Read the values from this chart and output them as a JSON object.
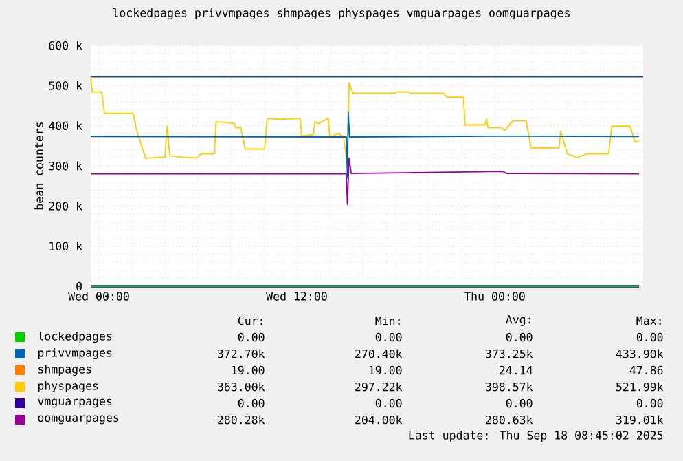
{
  "chart_data": {
    "type": "line",
    "title": "lockedpages privvmpages shmpages physpages vmguarpages oomguarpages",
    "ylabel": "bean counters",
    "xlim": [
      "2025-09-16T23:30",
      "2025-09-18T09:00"
    ],
    "ylim": [
      0,
      600000
    ],
    "xticks": [
      {
        "value": "2025-09-17T00:00",
        "label": "Wed 00:00"
      },
      {
        "value": "2025-09-17T12:00",
        "label": "Wed 12:00"
      },
      {
        "value": "2025-09-18T00:00",
        "label": "Thu 00:00"
      }
    ],
    "yticks": [
      0,
      {
        "value": 100000,
        "label": "100 k"
      },
      {
        "value": 200000,
        "label": "200 k"
      },
      {
        "value": 300000,
        "label": "300 k"
      },
      {
        "value": 400000,
        "label": "400 k"
      },
      {
        "value": 500000,
        "label": "500 k"
      },
      {
        "value": 600000,
        "label": "600 k"
      }
    ],
    "grid": true,
    "legend": "bottom",
    "marker": "none",
    "line_style": "solid",
    "ref_lines": [
      {
        "axis": "y",
        "value": 522000,
        "color": "#1f4f8a"
      }
    ],
    "series": [
      {
        "name": "lockedpages",
        "color": "#00cc00",
        "x": [
          "2025-09-16T23:30",
          "2025-09-18T08:45"
        ],
        "values": [
          0,
          0
        ]
      },
      {
        "name": "privvmpages",
        "color": "#0066b3",
        "x": [
          "2025-09-16T23:30",
          "2025-09-17T15:00",
          "2025-09-17T15:04",
          "2025-09-17T15:07",
          "2025-09-17T15:12",
          "2025-09-18T00:00",
          "2025-09-18T08:45"
        ],
        "values": [
          373000,
          372000,
          270000,
          433000,
          372000,
          374000,
          373000
        ]
      },
      {
        "name": "shmpages",
        "color": "#ff8000",
        "values": [
          null
        ]
      },
      {
        "name": "physpages",
        "color": "#ffcc00",
        "x": [
          "2025-09-16T23:30",
          "2025-09-16T23:36",
          "2025-09-17T00:10",
          "2025-09-17T00:20",
          "2025-09-17T02:04",
          "2025-09-17T02:20",
          "2025-09-17T02:50",
          "2025-09-17T04:00",
          "2025-09-17T04:08",
          "2025-09-17T04:18",
          "2025-09-17T05:00",
          "2025-09-17T05:56",
          "2025-09-17T06:12",
          "2025-09-17T07:00",
          "2025-09-17T07:06",
          "2025-09-17T08:12",
          "2025-09-17T08:18",
          "2025-09-17T08:36",
          "2025-09-17T08:52",
          "2025-09-17T10:03",
          "2025-09-17T10:12",
          "2025-09-17T11:00",
          "2025-09-17T12:12",
          "2025-09-17T12:18",
          "2025-09-17T13:00",
          "2025-09-17T13:06",
          "2025-09-17T13:18",
          "2025-09-17T13:54",
          "2025-09-17T14:00",
          "2025-09-17T14:30",
          "2025-09-17T14:50",
          "2025-09-17T15:04",
          "2025-09-17T15:10",
          "2025-09-17T15:24",
          "2025-09-17T17:54",
          "2025-09-17T18:00",
          "2025-09-17T18:48",
          "2025-09-17T18:54",
          "2025-09-17T20:54",
          "2025-09-17T21:06",
          "2025-09-17T22:06",
          "2025-09-17T22:12",
          "2025-09-17T23:24",
          "2025-09-17T23:30",
          "2025-09-17T23:36",
          "2025-09-18T00:24",
          "2025-09-18T00:36",
          "2025-09-18T01:06",
          "2025-09-18T01:54",
          "2025-09-18T02:12",
          "2025-09-18T03:54",
          "2025-09-18T04:00",
          "2025-09-18T04:24",
          "2025-09-18T05:00",
          "2025-09-18T05:36",
          "2025-09-18T06:54",
          "2025-09-18T07:06",
          "2025-09-18T08:12",
          "2025-09-18T08:30",
          "2025-09-18T08:45"
        ],
        "values": [
          522000,
          484000,
          484000,
          431000,
          431000,
          382000,
          319000,
          322000,
          399000,
          325000,
          322000,
          320000,
          330000,
          330000,
          410000,
          406000,
          395000,
          395000,
          342000,
          342000,
          418000,
          416000,
          418000,
          374000,
          378000,
          410000,
          405000,
          418000,
          370000,
          381000,
          372000,
          302000,
          507000,
          481000,
          481000,
          484000,
          484000,
          481000,
          481000,
          471000,
          471000,
          402000,
          402000,
          416000,
          395000,
          395000,
          388000,
          412000,
          412000,
          345000,
          345000,
          386000,
          330000,
          321000,
          330000,
          330000,
          399000,
          399000,
          359000,
          363000
        ]
      },
      {
        "name": "vmguarpages",
        "color": "#330099",
        "x": [
          "2025-09-16T23:30",
          "2025-09-18T08:45"
        ],
        "values": [
          0,
          0
        ]
      },
      {
        "name": "oomguarpages",
        "color": "#990099",
        "x": [
          "2025-09-16T23:30",
          "2025-09-17T15:00",
          "2025-09-17T15:04",
          "2025-09-17T15:10",
          "2025-09-17T15:18",
          "2025-09-18T00:30",
          "2025-09-18T00:42",
          "2025-09-18T08:45"
        ],
        "values": [
          280000,
          280000,
          204000,
          319000,
          281000,
          286000,
          281000,
          280000
        ]
      }
    ],
    "annotations": [
      "Cur:",
      "Min:",
      "Avg:",
      "Max:",
      "0.00",
      "0.00",
      "0.00",
      "0.00",
      "372.70k",
      "270.40k",
      "373.25k",
      "433.90k",
      "19.00",
      "19.00",
      "24.14",
      "47.86",
      "363.00k",
      "297.22k",
      "398.57k",
      "521.99k",
      "0.00",
      "0.00",
      "0.00",
      "0.00",
      "280.28k",
      "204.00k",
      "280.63k",
      "319.01k",
      "Last update: Thu Sep 18 08:45:02 2025"
    ]
  }
}
